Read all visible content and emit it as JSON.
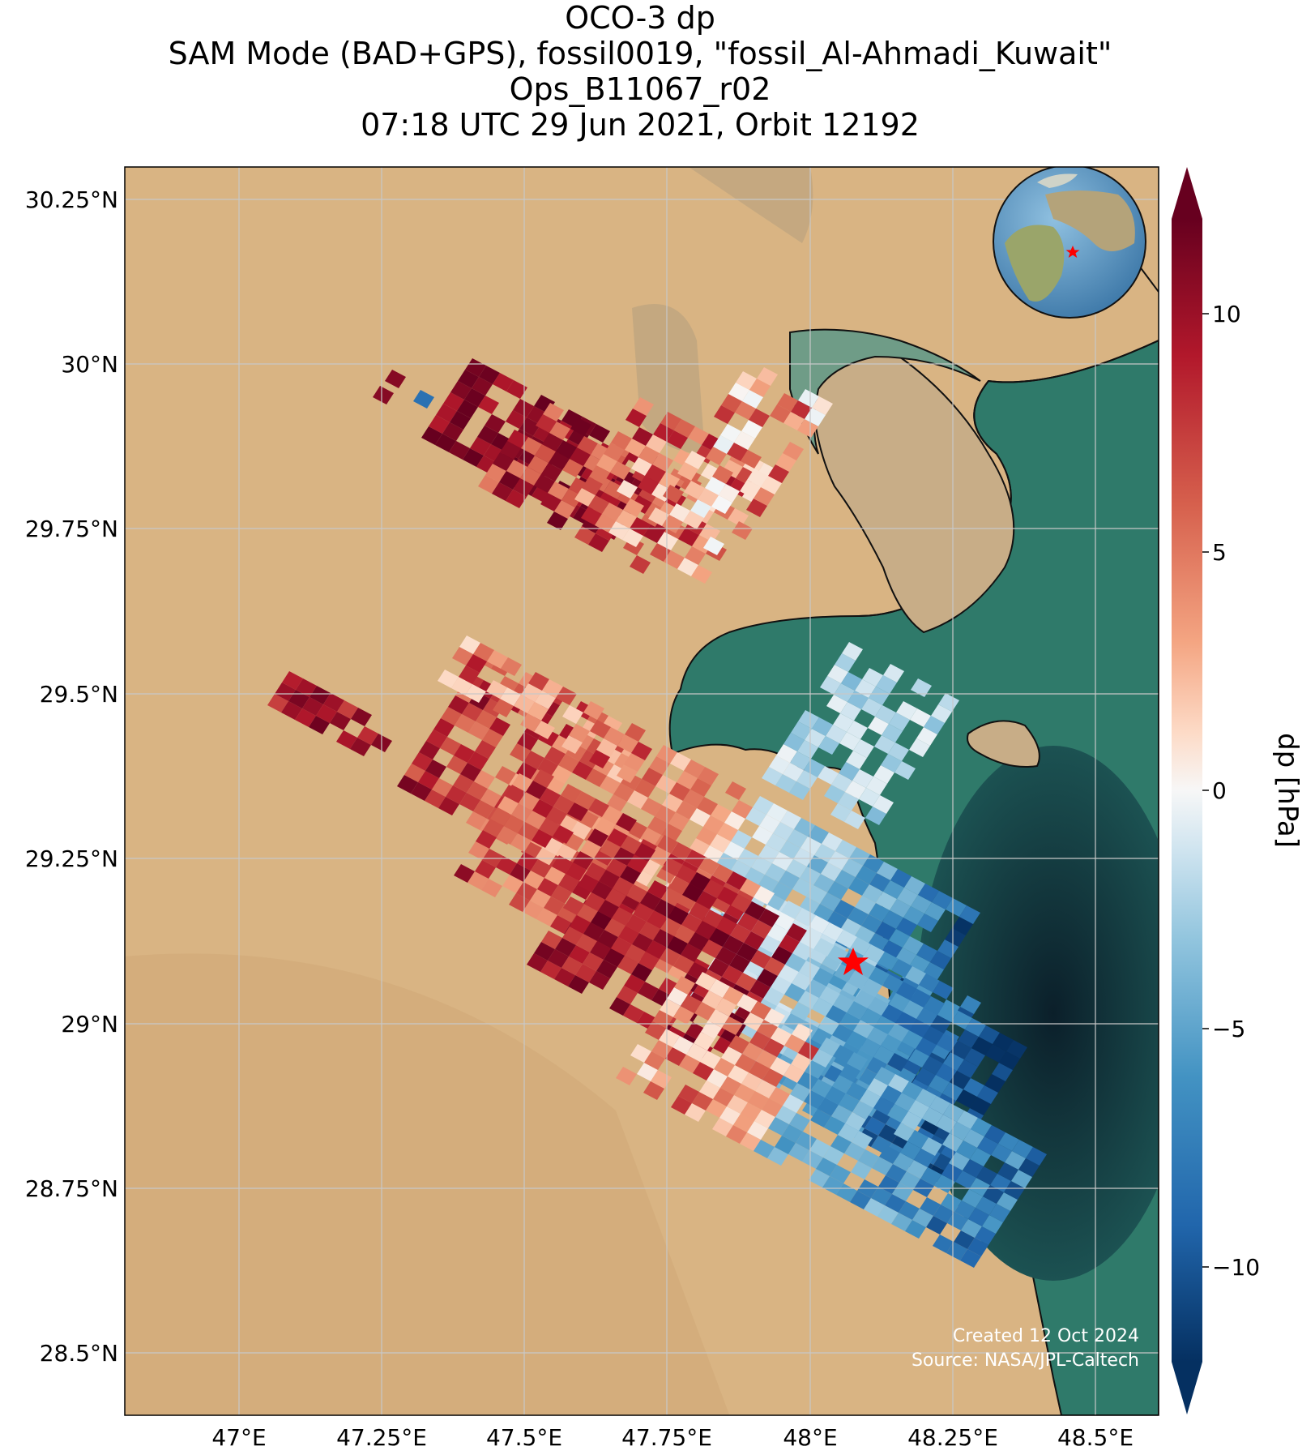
{
  "title": {
    "line1": "OCO-3 dp",
    "line2": "SAM Mode (BAD+GPS), fossil0019, \"fossil_Al-Ahmadi_Kuwait\"",
    "line3": "Ops_B11067_r02",
    "line4": "07:18 UTC 29 Jun 2021, Orbit 12192"
  },
  "axes": {
    "lon_ticks": [
      "47°E",
      "47.25°E",
      "47.5°E",
      "47.75°E",
      "48°E",
      "48.25°E",
      "48.5°E"
    ],
    "lat_ticks": [
      "30.25°N",
      "30°N",
      "29.75°N",
      "29.5°N",
      "29.25°N",
      "29°N",
      "28.75°N",
      "28.5°N"
    ],
    "lon_range": [
      46.85,
      48.55
    ],
    "lat_range": [
      28.4,
      30.3
    ]
  },
  "colorbar": {
    "label": "dp [hPa]",
    "ticks": [
      "10",
      "5",
      "0",
      "−5",
      "−10"
    ],
    "range": [
      -12,
      12
    ],
    "colormap": "RdBu_r"
  },
  "target_site": {
    "name": "fossil_Al-Ahmadi_Kuwait",
    "lon": 48.06,
    "lat": 29.09,
    "marker": "star-icon",
    "color": "#ff0000"
  },
  "credits": {
    "created": "Created 12 Oct 2024",
    "source": "Source: NASA/JPL-Caltech"
  },
  "colors": {
    "desert": "#d9b483",
    "sea": "#2f7a6a",
    "deep_sea": "#0f2a33",
    "coastline": "#111111",
    "high": "#67001f",
    "low": "#053061"
  }
}
